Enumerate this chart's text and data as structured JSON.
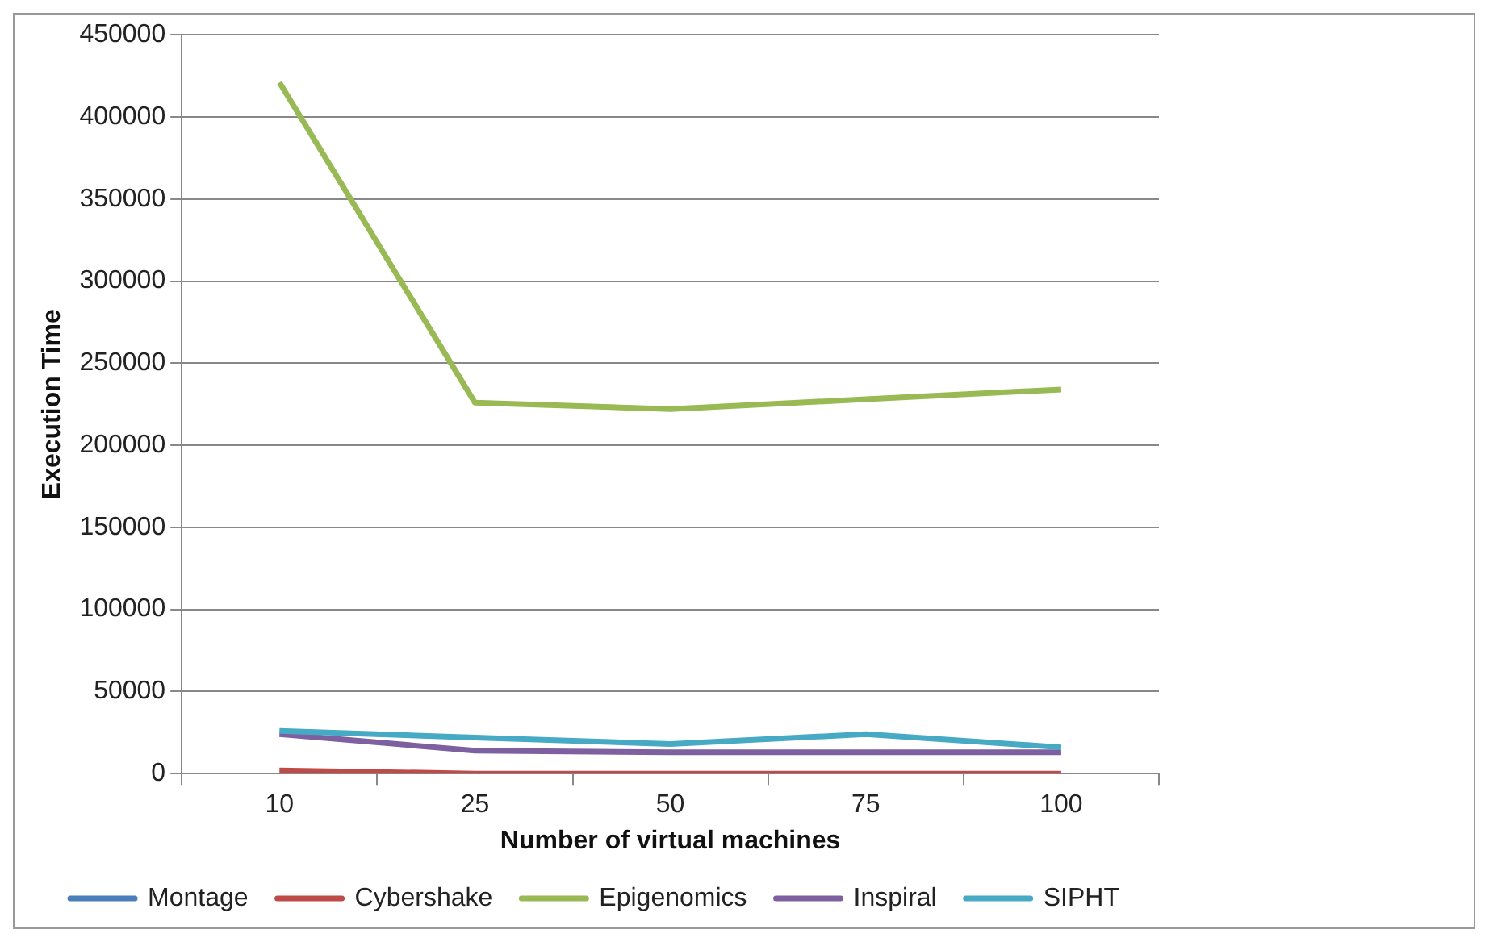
{
  "chart_data": {
    "type": "line",
    "xlabel": "Number of virtual machines",
    "ylabel": "Execution Time",
    "categories": [
      "10",
      "25",
      "50",
      "75",
      "100"
    ],
    "series": [
      {
        "name": "Montage",
        "color": "#4a7ebb",
        "values": [
          null,
          null,
          null,
          null,
          null
        ]
      },
      {
        "name": "Cybershake",
        "color": "#be4b48",
        "values": [
          2000,
          0,
          0,
          0,
          0
        ]
      },
      {
        "name": "Epigenomics",
        "color": "#98b954",
        "values": [
          421000,
          226000,
          222000,
          228000,
          234000
        ]
      },
      {
        "name": "Inspiral",
        "color": "#7d60a0",
        "values": [
          24000,
          14000,
          13000,
          13000,
          13000
        ]
      },
      {
        "name": "SIPHT",
        "color": "#46aac5",
        "values": [
          26000,
          22000,
          18000,
          24000,
          16000
        ]
      }
    ],
    "ylim": [
      0,
      450000
    ],
    "yticks": [
      0,
      50000,
      100000,
      150000,
      200000,
      250000,
      300000,
      350000,
      400000,
      450000
    ],
    "grid": "y",
    "legend": "bottom",
    "marker": "none",
    "line_style": "solid"
  }
}
